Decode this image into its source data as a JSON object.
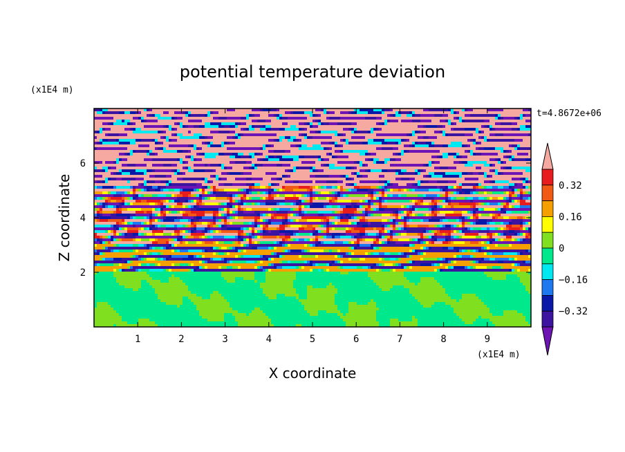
{
  "chart_data": {
    "type": "heatmap",
    "title": "potential temperature deviation",
    "xlabel": "X coordinate",
    "ylabel": "Z coordinate",
    "x_unit": "(x1E4 m)",
    "y_unit": "(x1E4 m)",
    "time_label": "t=4.8672e+06",
    "xlim": [
      0,
      10
    ],
    "ylim": [
      0,
      8
    ],
    "x_ticks": [
      "1",
      "2",
      "3",
      "4",
      "5",
      "6",
      "7",
      "8",
      "9"
    ],
    "y_ticks": [
      "2",
      "4",
      "6"
    ],
    "colorbar": {
      "levels": [
        -0.4,
        -0.32,
        -0.24,
        -0.16,
        -0.08,
        0,
        0.08,
        0.16,
        0.24,
        0.32,
        0.4
      ],
      "tick_labels": [
        "0.32",
        "0.16",
        "0",
        "−0.16",
        "−0.32"
      ],
      "colors_top_to_bottom": [
        "#f5a9a0",
        "#e81c1c",
        "#f05a14",
        "#f5a000",
        "#ffff00",
        "#80e020",
        "#00e88c",
        "#00e8f0",
        "#1e78f0",
        "#0a18a8",
        "#3c14a0",
        "#6e14b4"
      ],
      "extend": "both"
    },
    "regions": [
      {
        "z_range": [
          7.3,
          8.0
        ],
        "pattern": "alternating bands",
        "dominant": "pink / purple"
      },
      {
        "z_range": [
          5.0,
          7.3
        ],
        "pattern": "alternating bands",
        "dominant": "pink / purple / blue"
      },
      {
        "z_range": [
          2.0,
          5.0
        ],
        "pattern": "banded wave structures",
        "dominant": "mixed full range"
      },
      {
        "z_range": [
          0.0,
          2.0
        ],
        "pattern": "smooth patches",
        "dominant": "green / light green"
      }
    ]
  }
}
